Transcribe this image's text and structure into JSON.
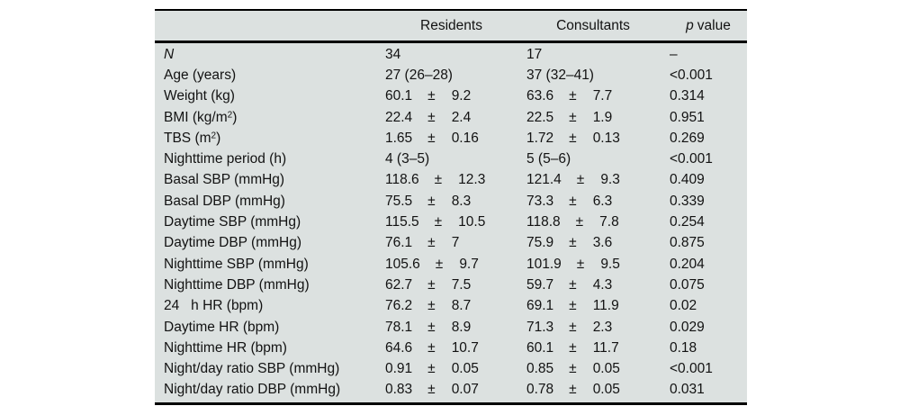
{
  "table": {
    "plus_minus": "±",
    "colors": {
      "panel_background": "#dce1e0",
      "rule": "#000000",
      "text": "#121212"
    },
    "header": {
      "residents": "Residents",
      "consultants": "Consultants",
      "p_symbol": "p",
      "p_word": "value"
    },
    "rows": [
      {
        "label_pre": "N",
        "italic": true,
        "residents": {
          "text": "34"
        },
        "consultants": {
          "text": "17"
        },
        "p": "–"
      },
      {
        "label_pre": "Age (years)",
        "residents": {
          "text": "27 (26–28)"
        },
        "consultants": {
          "text": "37 (32–41)"
        },
        "p": "<0.001"
      },
      {
        "label_pre": "Weight (kg)",
        "residents": {
          "mean": "60.1",
          "sd": "9.2"
        },
        "consultants": {
          "mean": "63.6",
          "sd": "7.7"
        },
        "p": "0.314"
      },
      {
        "label_pre": "BMI (kg/m",
        "label_sup": "2",
        "label_post": ")",
        "residents": {
          "mean": "22.4",
          "sd": "2.4"
        },
        "consultants": {
          "mean": "22.5",
          "sd": "1.9"
        },
        "p": "0.951"
      },
      {
        "label_pre": "TBS (m",
        "label_sup": "2",
        "label_post": ")",
        "residents": {
          "mean": "1.65",
          "sd": "0.16"
        },
        "consultants": {
          "mean": "1.72",
          "sd": "0.13"
        },
        "p": "0.269"
      },
      {
        "label_pre": "Nighttime period (h)",
        "residents": {
          "text": "4 (3–5)"
        },
        "consultants": {
          "text": "5 (5–6)"
        },
        "p": "<0.001"
      },
      {
        "label_pre": "Basal SBP (mmHg)",
        "residents": {
          "mean": "118.6",
          "sd": "12.3"
        },
        "consultants": {
          "mean": "121.4",
          "sd": "9.3"
        },
        "p": "0.409"
      },
      {
        "label_pre": "Basal DBP (mmHg)",
        "residents": {
          "mean": "75.5",
          "sd": "8.3"
        },
        "consultants": {
          "mean": "73.3",
          "sd": "6.3"
        },
        "p": "0.339"
      },
      {
        "label_pre": "Daytime SBP (mmHg)",
        "residents": {
          "mean": "115.5",
          "sd": "10.5"
        },
        "consultants": {
          "mean": "118.8",
          "sd": "7.8"
        },
        "p": "0.254"
      },
      {
        "label_pre": "Daytime DBP (mmHg)",
        "residents": {
          "mean": "76.1",
          "sd": "7"
        },
        "consultants": {
          "mean": "75.9",
          "sd": "3.6"
        },
        "p": "0.875"
      },
      {
        "label_pre": "Nighttime SBP (mmHg)",
        "residents": {
          "mean": "105.6",
          "sd": "9.7"
        },
        "consultants": {
          "mean": "101.9",
          "sd": "9.5"
        },
        "p": "0.204"
      },
      {
        "label_pre": "Nighttime DBP (mmHg)",
        "residents": {
          "mean": "62.7",
          "sd": "7.5"
        },
        "consultants": {
          "mean": "59.7",
          "sd": "4.3"
        },
        "p": "0.075"
      },
      {
        "label_pre": "24   h HR (bpm)",
        "residents": {
          "mean": "76.2",
          "sd": "8.7"
        },
        "consultants": {
          "mean": "69.1",
          "sd": "11.9"
        },
        "p": "0.02"
      },
      {
        "label_pre": "Daytime HR (bpm)",
        "residents": {
          "mean": "78.1",
          "sd": "8.9"
        },
        "consultants": {
          "mean": "71.3",
          "sd": "2.3"
        },
        "p": "0.029"
      },
      {
        "label_pre": "Nighttime HR (bpm)",
        "residents": {
          "mean": "64.6",
          "sd": "10.7"
        },
        "consultants": {
          "mean": "60.1",
          "sd": "11.7"
        },
        "p": "0.18"
      },
      {
        "label_pre": "Night/day ratio SBP (mmHg)",
        "residents": {
          "mean": "0.91",
          "sd": "0.05"
        },
        "consultants": {
          "mean": "0.85",
          "sd": "0.05"
        },
        "p": "<0.001"
      },
      {
        "label_pre": "Night/day ratio DBP (mmHg)",
        "residents": {
          "mean": "0.83",
          "sd": "0.07"
        },
        "consultants": {
          "mean": "0.78",
          "sd": "0.05"
        },
        "p": "0.031"
      }
    ]
  }
}
